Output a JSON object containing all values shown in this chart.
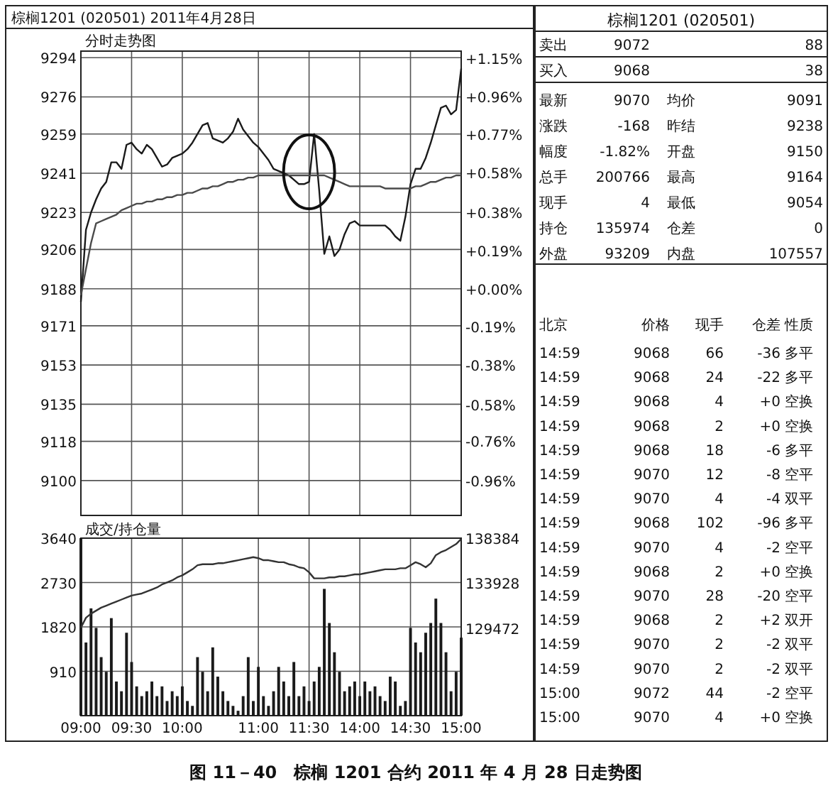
{
  "chart_data": [
    {
      "type": "line",
      "title": "棕榈1201 (020501) 2011年4月28日",
      "subtitle": "分时走势图",
      "categories": [
        null,
        null,
        null,
        null,
        null,
        null,
        null,
        null,
        null,
        null,
        null,
        null,
        null,
        null,
        null,
        null,
        null,
        null,
        null,
        null,
        null,
        null,
        null,
        null,
        null,
        null,
        null,
        null,
        null,
        null,
        null,
        null,
        null,
        null,
        null,
        null,
        null,
        null,
        null,
        null,
        null,
        null,
        null,
        null,
        null,
        null,
        null,
        null,
        null,
        null,
        null,
        null,
        null,
        null,
        null,
        null,
        null,
        null,
        null,
        null,
        null,
        null,
        null,
        null,
        null,
        null,
        null,
        null,
        null,
        null,
        null,
        null,
        null,
        null,
        null,
        null
      ],
      "ylim": [
        9084,
        9297
      ],
      "yticks": [
        9100,
        9118,
        9135,
        9153,
        9171,
        9188,
        9206,
        9223,
        9241,
        9259,
        9276,
        9294
      ],
      "y2lim": [
        -1.132,
        1.186
      ],
      "y2ticks": [
        {
          "value": -0.96,
          "label": "-0.96%"
        },
        {
          "value": -0.76,
          "label": "-0.76%"
        },
        {
          "value": -0.58,
          "label": "-0.58%"
        },
        {
          "value": -0.38,
          "label": "-0.38%"
        },
        {
          "value": -0.19,
          "label": "-0.19%"
        },
        {
          "value": 0,
          "label": "+0.00%"
        },
        {
          "value": 0.19,
          "label": "+0.19%"
        },
        {
          "value": 0.38,
          "label": "+0.38%"
        },
        {
          "value": 0.58,
          "label": "+0.58%"
        },
        {
          "value": 0.77,
          "label": "+0.77%"
        },
        {
          "value": 0.96,
          "label": "+0.96%"
        },
        {
          "value": 1.15,
          "label": "+1.15%"
        }
      ],
      "grid": true,
      "tick_labels": "y",
      "annotations": [
        "图 11－40　棕榈 1201 合约 2011 年 4 月 28 日走势图"
      ],
      "series": [
        {
          "color": "#1a1a1a",
          "values": [
            9182,
            9215,
            9223,
            9229,
            9234,
            9237,
            9246,
            9246,
            9243,
            9254,
            9255,
            9252,
            9250,
            9254,
            9252,
            9248,
            9244,
            9245,
            9248,
            9249,
            9250,
            9252,
            9255,
            9259,
            9263,
            9264,
            9257,
            9256,
            9255,
            9257,
            9260,
            9266,
            9261,
            9258,
            9255,
            9253,
            9250,
            9247,
            9243,
            9242,
            9241,
            9240,
            9238,
            9236,
            9236,
            9237,
            9259,
            9233,
            9204,
            9212,
            9203,
            9206,
            9213,
            9218,
            9219,
            9217,
            9217,
            9217,
            9217,
            9217,
            9217,
            9215,
            9212,
            9210,
            9221,
            9236,
            9243,
            9243,
            9248,
            9255,
            9263,
            9271,
            9272,
            9268,
            9270,
            9289
          ]
        },
        {
          "color": "#4a4a4a",
          "values": [
            9185,
            9197,
            9209,
            9218,
            9219,
            9220,
            9221,
            9222,
            9224,
            9225,
            9226,
            9227,
            9227,
            9228,
            9228,
            9229,
            9229,
            9230,
            9230,
            9231,
            9231,
            9232,
            9232,
            9233,
            9234,
            9234,
            9235,
            9235,
            9236,
            9237,
            9237,
            9238,
            9238,
            9239,
            9239,
            9240,
            9240,
            9240,
            9240,
            9240,
            9240,
            9240,
            9240,
            9240,
            9240,
            9240,
            9240,
            9240,
            9240,
            9239,
            9238,
            9237,
            9236,
            9235,
            9235,
            9235,
            9235,
            9235,
            9235,
            9235,
            9234,
            9234,
            9234,
            9234,
            9234,
            9234,
            9235,
            9235,
            9236,
            9237,
            9237,
            9238,
            9239,
            9239,
            9240,
            9240
          ]
        }
      ]
    },
    {
      "type": "bar",
      "subtitle": "成交/持仓量",
      "categories": [
        "09:00",
        null,
        null,
        null,
        null,
        null,
        null,
        null,
        null,
        null,
        "09:30",
        null,
        null,
        null,
        null,
        null,
        null,
        null,
        null,
        null,
        "10:00",
        null,
        null,
        null,
        null,
        null,
        null,
        null,
        null,
        null,
        null,
        null,
        null,
        null,
        null,
        "11:00",
        null,
        null,
        null,
        null,
        null,
        null,
        null,
        null,
        null,
        "11:30",
        null,
        null,
        null,
        null,
        null,
        null,
        null,
        null,
        null,
        "14:00",
        null,
        null,
        null,
        null,
        null,
        null,
        null,
        null,
        null,
        "14:30",
        null,
        null,
        null,
        null,
        null,
        null,
        null,
        null,
        null,
        "15:00"
      ],
      "ylim": [
        0,
        3640
      ],
      "yticks": [
        910,
        1820,
        2730,
        3640
      ],
      "y2lim": [
        120800,
        138384
      ],
      "y2ticks": [
        129472,
        133928,
        138384
      ],
      "grid": true,
      "series": [
        {
          "type": "bar",
          "color": "#1a1a1a",
          "values": [
            3640,
            1500,
            2200,
            1800,
            1200,
            900,
            2000,
            700,
            500,
            1700,
            1100,
            600,
            400,
            500,
            700,
            400,
            600,
            300,
            500,
            400,
            600,
            300,
            200,
            1200,
            900,
            500,
            1400,
            800,
            500,
            300,
            200,
            100,
            400,
            1200,
            300,
            1000,
            400,
            200,
            500,
            1000,
            700,
            400,
            1100,
            400,
            600,
            300,
            700,
            1000,
            2600,
            1900,
            1300,
            900,
            500,
            600,
            700,
            400,
            700,
            500,
            600,
            400,
            300,
            800,
            700,
            200,
            300,
            1800,
            1500,
            1300,
            1700,
            1900,
            2400,
            1900,
            1300,
            500,
            900,
            1600
          ]
        },
        {
          "type": "line",
          "axis": "y2",
          "color": "#333333",
          "values": [
            129500,
            130500,
            130900,
            131200,
            131500,
            131700,
            131900,
            132100,
            132300,
            132500,
            132700,
            132800,
            132900,
            133100,
            133300,
            133500,
            133800,
            134000,
            134200,
            134500,
            134700,
            135000,
            135300,
            135700,
            135800,
            135800,
            135800,
            135900,
            135900,
            136000,
            136100,
            136200,
            136300,
            136400,
            136500,
            136400,
            136200,
            136200,
            136100,
            136000,
            136000,
            135800,
            135700,
            135500,
            135400,
            135000,
            134400,
            134400,
            134400,
            134500,
            134500,
            134600,
            134600,
            134700,
            134800,
            134800,
            134900,
            135000,
            135100,
            135200,
            135300,
            135300,
            135300,
            135400,
            135400,
            135700,
            136000,
            135800,
            135500,
            135900,
            136700,
            137000,
            137200,
            137500,
            137800,
            138300
          ]
        }
      ]
    },
    {
      "type": "other",
      "title": "棕榈1201 (020501)",
      "cell_labels": [
        [
          "卖出",
          "9072",
          null,
          "88"
        ],
        [
          "买入",
          "9068",
          null,
          "38"
        ],
        [
          "最新",
          "9070",
          "均价",
          "9091"
        ],
        [
          "涨跌",
          "-168",
          "昨结",
          "9238"
        ],
        [
          "幅度",
          "-1.82%",
          "开盘",
          "9150"
        ],
        [
          "总手",
          "200766",
          "最高",
          "9164"
        ],
        [
          "现手",
          "4",
          "最低",
          "9054"
        ],
        [
          "持仓",
          "135974",
          "仓差",
          "0"
        ],
        [
          "外盘",
          "93209",
          "内盘",
          "107557"
        ]
      ]
    },
    {
      "type": "other",
      "categories": [
        "北京",
        "价格",
        "现手",
        "仓差",
        "性质"
      ],
      "cell_labels": [
        [
          "14:59",
          "9068",
          "66",
          "-36",
          "多平"
        ],
        [
          "14:59",
          "9068",
          "24",
          "-22",
          "多平"
        ],
        [
          "14:59",
          "9068",
          "4",
          "+0",
          "空换"
        ],
        [
          "14:59",
          "9068",
          "2",
          "+0",
          "空换"
        ],
        [
          "14:59",
          "9068",
          "18",
          "-6",
          "多平"
        ],
        [
          "14:59",
          "9070",
          "12",
          "-8",
          "空平"
        ],
        [
          "14:59",
          "9070",
          "4",
          "-4",
          "双平"
        ],
        [
          "14:59",
          "9068",
          "102",
          "-96",
          "多平"
        ],
        [
          "14:59",
          "9070",
          "4",
          "-2",
          "空平"
        ],
        [
          "14:59",
          "9068",
          "2",
          "+0",
          "空换"
        ],
        [
          "14:59",
          "9070",
          "28",
          "-20",
          "空平"
        ],
        [
          "14:59",
          "9068",
          "2",
          "+2",
          "双开"
        ],
        [
          "14:59",
          "9070",
          "2",
          "-2",
          "双平"
        ],
        [
          "14:59",
          "9070",
          "2",
          "-2",
          "双平"
        ],
        [
          "15:00",
          "9072",
          "44",
          "-2",
          "空平"
        ],
        [
          "15:00",
          "9070",
          "4",
          "+0",
          "空换"
        ]
      ]
    }
  ]
}
